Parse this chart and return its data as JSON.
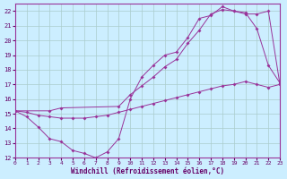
{
  "xlabel": "Windchill (Refroidissement éolien,°C)",
  "bg_color": "#cceeff",
  "line_color": "#993399",
  "grid_color": "#aacccc",
  "xmin": 0,
  "xmax": 23,
  "ymin": 12,
  "ymax": 22.5,
  "yticks": [
    12,
    13,
    14,
    15,
    16,
    17,
    18,
    19,
    20,
    21,
    22
  ],
  "line1_x": [
    0,
    1,
    2,
    3,
    4,
    5,
    6,
    7,
    8,
    9,
    10,
    11,
    12,
    13,
    14,
    15,
    16,
    17,
    18,
    19,
    20,
    21,
    22,
    23
  ],
  "line1_y": [
    15.2,
    14.8,
    14.1,
    13.3,
    13.1,
    12.5,
    12.3,
    12.0,
    12.4,
    13.3,
    16.0,
    17.5,
    18.3,
    19.0,
    19.2,
    20.2,
    21.5,
    21.7,
    22.3,
    22.0,
    21.9,
    20.8,
    18.3,
    17.1
  ],
  "line2_x": [
    0,
    3,
    4,
    9,
    10,
    11,
    12,
    13,
    14,
    15,
    16,
    17,
    18,
    19,
    20,
    21,
    22,
    23
  ],
  "line2_y": [
    15.2,
    15.2,
    15.4,
    15.5,
    16.3,
    16.9,
    17.5,
    18.2,
    18.7,
    19.8,
    20.7,
    21.8,
    22.1,
    22.0,
    21.8,
    21.8,
    22.0,
    17.0
  ],
  "line3_x": [
    0,
    1,
    2,
    3,
    4,
    5,
    6,
    7,
    8,
    9,
    10,
    11,
    12,
    13,
    14,
    15,
    16,
    17,
    18,
    19,
    20,
    21,
    22,
    23
  ],
  "line3_y": [
    15.2,
    15.1,
    14.9,
    14.8,
    14.7,
    14.7,
    14.7,
    14.8,
    14.9,
    15.1,
    15.3,
    15.5,
    15.7,
    15.9,
    16.1,
    16.3,
    16.5,
    16.7,
    16.9,
    17.0,
    17.2,
    17.0,
    16.8,
    17.0
  ]
}
